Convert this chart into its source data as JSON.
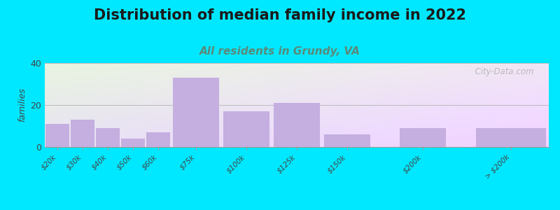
{
  "title": "Distribution of median family income in 2022",
  "subtitle": "All residents in Grundy, VA",
  "ylabel": "families",
  "categories": [
    "$20k",
    "$30k",
    "$40k",
    "$50k",
    "$60k",
    "$75k",
    "$100k",
    "$125k",
    "$150k",
    "$200k",
    "> $200k"
  ],
  "values": [
    11,
    13,
    9,
    4,
    7,
    33,
    17,
    21,
    6,
    9,
    9
  ],
  "bar_color": "#c5aee0",
  "ylim": [
    0,
    40
  ],
  "yticks": [
    0,
    20,
    40
  ],
  "bg_outer": "#00e8ff",
  "bg_inner": "#eef5e8",
  "title_fontsize": 15,
  "subtitle_fontsize": 11,
  "subtitle_color": "#5a8a7a",
  "watermark": "  City-Data.com",
  "bar_positions": [
    0,
    1,
    2,
    3,
    4,
    5,
    7,
    9,
    11,
    14,
    17
  ],
  "bar_widths": [
    1,
    1,
    1,
    1,
    1,
    2,
    2,
    2,
    2,
    2,
    3
  ]
}
